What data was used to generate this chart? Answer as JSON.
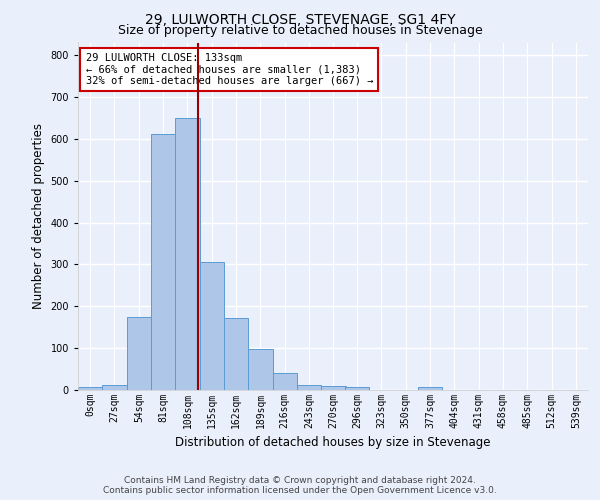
{
  "title": "29, LULWORTH CLOSE, STEVENAGE, SG1 4FY",
  "subtitle": "Size of property relative to detached houses in Stevenage",
  "xlabel": "Distribution of detached houses by size in Stevenage",
  "ylabel": "Number of detached properties",
  "bin_labels": [
    "0sqm",
    "27sqm",
    "54sqm",
    "81sqm",
    "108sqm",
    "135sqm",
    "162sqm",
    "189sqm",
    "216sqm",
    "243sqm",
    "270sqm",
    "296sqm",
    "323sqm",
    "350sqm",
    "377sqm",
    "404sqm",
    "431sqm",
    "458sqm",
    "485sqm",
    "512sqm",
    "539sqm"
  ],
  "bin_edges": [
    0,
    27,
    54,
    81,
    108,
    135,
    162,
    189,
    216,
    243,
    270,
    296,
    323,
    350,
    377,
    404,
    431,
    458,
    485,
    512,
    539
  ],
  "bar_heights": [
    8,
    13,
    175,
    612,
    650,
    305,
    172,
    97,
    40,
    13,
    10,
    8,
    0,
    0,
    8,
    0,
    0,
    0,
    0,
    0
  ],
  "bar_color": "#aec6e8",
  "bar_edge_color": "#5b9bd5",
  "property_size": 133,
  "vline_color": "#990000",
  "annotation_line1": "29 LULWORTH CLOSE: 133sqm",
  "annotation_line2": "← 66% of detached houses are smaller (1,383)",
  "annotation_line3": "32% of semi-detached houses are larger (667) →",
  "annotation_box_color": "#ffffff",
  "annotation_box_edge": "#cc0000",
  "ylim": [
    0,
    830
  ],
  "yticks": [
    0,
    100,
    200,
    300,
    400,
    500,
    600,
    700,
    800
  ],
  "footer_line1": "Contains HM Land Registry data © Crown copyright and database right 2024.",
  "footer_line2": "Contains public sector information licensed under the Open Government Licence v3.0.",
  "bg_color": "#eaf0fb",
  "plot_bg_color": "#eaf0fb",
  "grid_color": "#ffffff",
  "title_fontsize": 10,
  "subtitle_fontsize": 9,
  "axis_label_fontsize": 8.5,
  "tick_fontsize": 7,
  "annotation_fontsize": 7.5,
  "footer_fontsize": 6.5
}
